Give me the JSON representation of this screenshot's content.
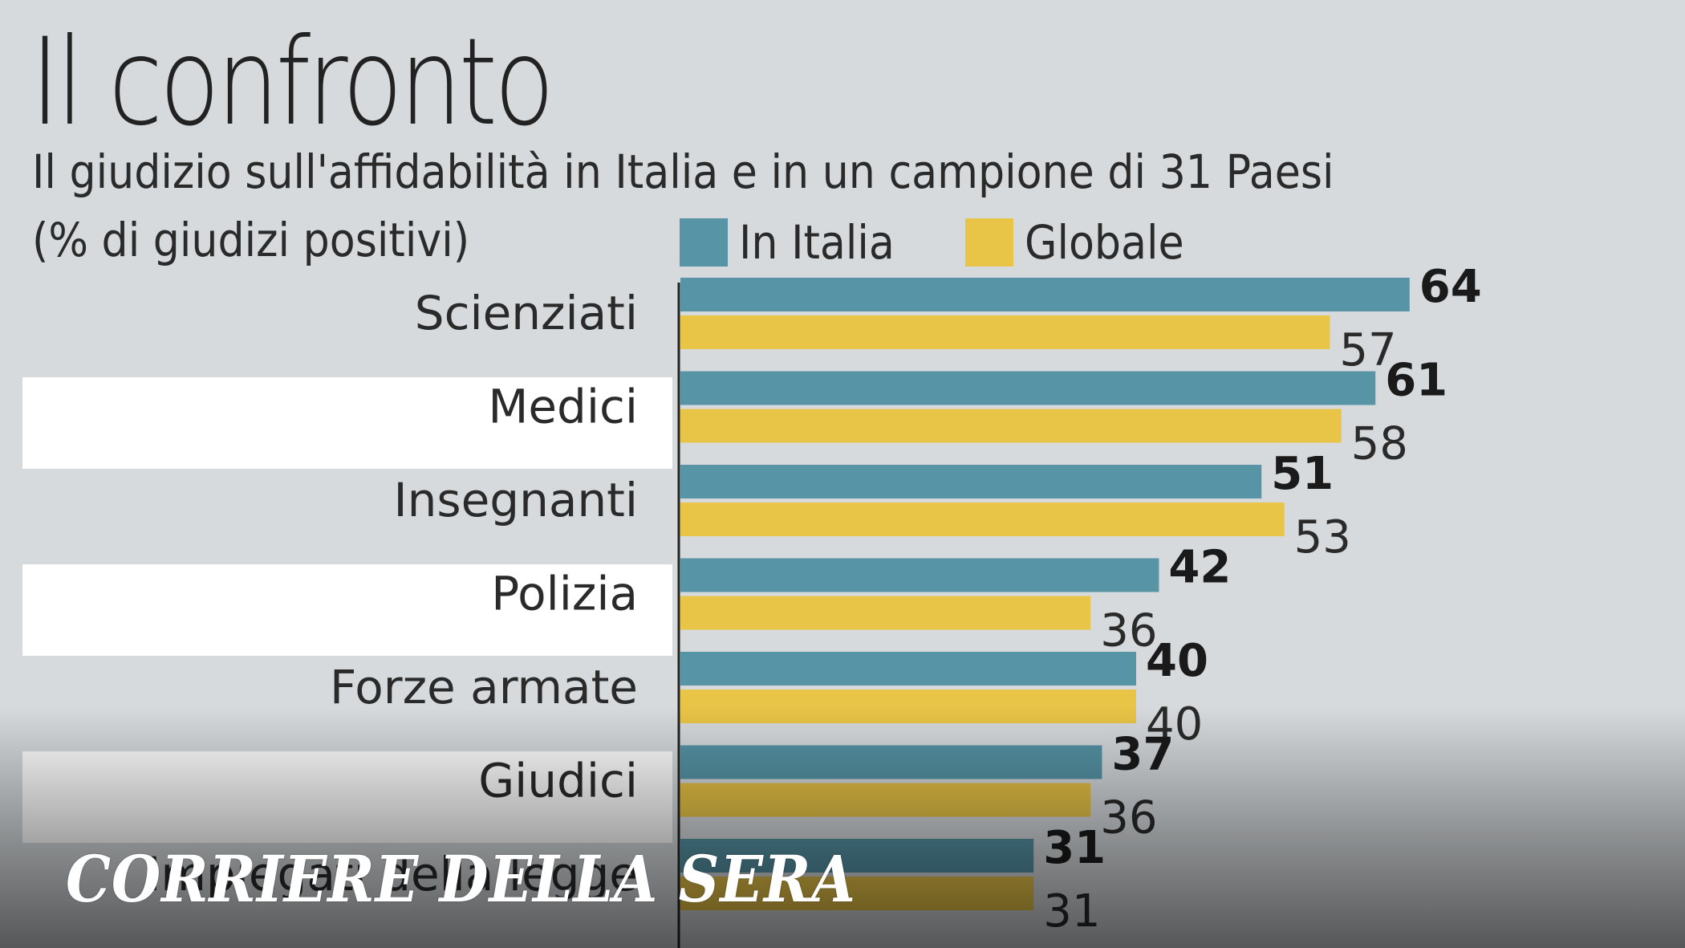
{
  "header": {
    "title": "Il confronto",
    "subtitle": "Il giudizio sull'affidabilità in Italia e in un campione di 31 Paesi",
    "unit_note": "(% di giudizi positivi)"
  },
  "legend": {
    "italia": "In Italia",
    "globale": "Globale"
  },
  "colors": {
    "italia": "#5694a6",
    "globale": "#e8c447",
    "background": "#d6dadd",
    "row_highlight": "#ffffff"
  },
  "chart_data": {
    "type": "bar",
    "orientation": "horizontal",
    "title": "Il confronto",
    "subtitle": "Il giudizio sull'affidabilità in Italia e in un campione di 31 Paesi",
    "ylabel": "(% di giudizi positivi)",
    "categories": [
      "Scienziati",
      "Medici",
      "Insegnanti",
      "Polizia",
      "Forze armate",
      "Giudici",
      "Impiegati della legge"
    ],
    "series": [
      {
        "name": "In Italia",
        "values": [
          64,
          61,
          51,
          42,
          40,
          37,
          31
        ]
      },
      {
        "name": "Globale",
        "values": [
          57,
          58,
          53,
          36,
          40,
          36,
          31
        ]
      }
    ],
    "xlim": [
      0,
      70
    ],
    "legend_position": "top",
    "grid": false,
    "highlighted_rows": [
      1,
      3,
      5
    ]
  },
  "watermark": {
    "logo_text": "CORRIERE DELLA SERA"
  }
}
